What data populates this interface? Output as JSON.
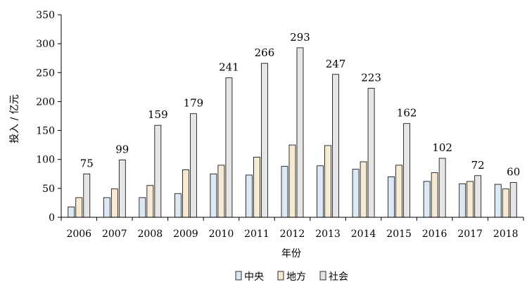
{
  "chart_data": {
    "type": "bar",
    "xlabel": "年份",
    "ylabel": "投入 / 亿元",
    "ylim": [
      0,
      350
    ],
    "yticks": [
      0,
      50,
      100,
      150,
      200,
      250,
      300,
      350
    ],
    "categories": [
      "2006",
      "2007",
      "2008",
      "2009",
      "2010",
      "2011",
      "2012",
      "2013",
      "2014",
      "2015",
      "2016",
      "2017",
      "2018"
    ],
    "series": [
      {
        "name": "中央",
        "color": "#dce9f5",
        "values": [
          18,
          34,
          34,
          41,
          75,
          73,
          88,
          89,
          83,
          70,
          62,
          58,
          57
        ]
      },
      {
        "name": "地方",
        "color": "#f6ead2",
        "values": [
          34,
          49,
          55,
          82,
          90,
          104,
          125,
          124,
          96,
          90,
          77,
          62,
          49
        ]
      },
      {
        "name": "社会",
        "color": "#e6e6e6",
        "values": [
          75,
          99,
          159,
          179,
          241,
          266,
          293,
          247,
          223,
          162,
          102,
          72,
          60
        ]
      }
    ],
    "data_labels_series": "社会",
    "legend": {
      "position": "bottom",
      "entries": [
        "中央",
        "地方",
        "社会"
      ]
    },
    "grid": false
  }
}
